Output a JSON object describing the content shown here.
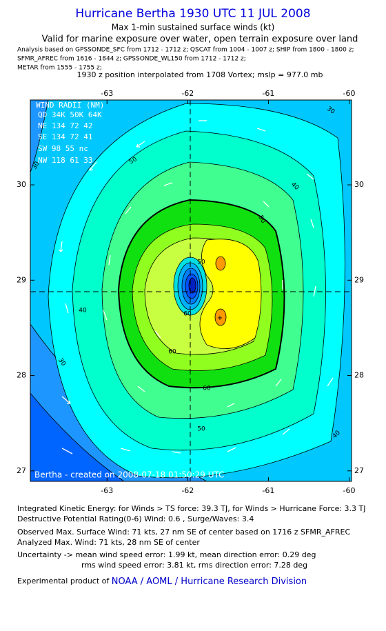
{
  "title": "Hurricane Bertha 1930 UTC 11 JUL 2008",
  "subtitle": "Max 1-min sustained surface winds (kt)",
  "validity": "Valid for marine exposure over water, open terrain exposure over land",
  "analysis": [
    "Analysis based on  GPSSONDE_SFC from 1712 - 1712 z;  QSCAT from 1004 - 1007 z;  SHIP from 1800 - 1800 z;",
    "SFMR_AFREC from 1616 - 1844 z;  GPSSONDE_WL150 from 1712 - 1712 z;",
    "METAR from 1555 - 1755 z;"
  ],
  "position_note": "1930 z position interpolated from 1708 Vortex; mslp = 977.0 mb",
  "map": {
    "xlim": [
      -63.95,
      -59.97
    ],
    "ylim": [
      26.89,
      30.89
    ],
    "xticks": [
      -63,
      -62,
      -61,
      -60
    ],
    "yticks": [
      27,
      28,
      29,
      30
    ],
    "contour_labels": [
      "30",
      "30",
      "30",
      "40",
      "40",
      "40",
      "50",
      "50",
      "50",
      "60",
      "60",
      "60",
      "50"
    ]
  },
  "wind_radii": {
    "title": "WIND RADII (NM)",
    "header": "QD 34K 50K 64K",
    "rows": [
      "NE 134  72  42",
      "SE 134  72  41",
      "SW  98  55  nc",
      "NW 118  61  33"
    ]
  },
  "credit": "Bertha - created on 2008-07-18 01:50:29 UTC",
  "footer": [
    "Integrated Kinetic Energy:  for Winds > TS force: 39.3 TJ,  for Winds > Hurricane Force: 3.3 TJ",
    "Destructive Potential Rating(0-6)   Wind: 0.6 , Surge/Waves: 3.4",
    "Observed Max. Surface Wind: 71 kts, 27 nm SE of center based on 1716 z SFMR_AFREC",
    "Analyzed Max. Wind: 71 kts, 28 nm SE of center",
    "Uncertainty -> mean wind speed error: 1.99 kt,   mean direction error: 0.29 deg",
    "rms wind speed error: 3.81 kt,   rms direction error: 7.28 deg"
  ],
  "product": {
    "text": "Experimental product of",
    "link": "NOAA / AOML / Hurricane Research Division"
  }
}
